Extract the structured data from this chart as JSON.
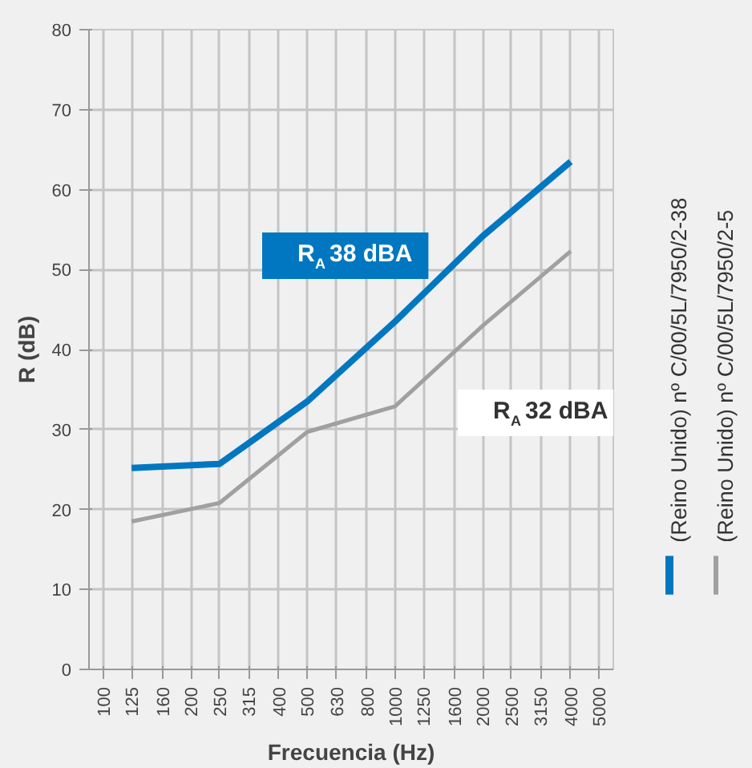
{
  "chart_data": {
    "type": "line",
    "xlabel": "Frecuencia (Hz)",
    "ylabel": "R (dB)",
    "x": [
      125,
      250,
      500,
      1000,
      2000,
      4000
    ],
    "series": [
      {
        "name": "(Reino Unido) nº C/00/5L/7950/2-38",
        "color": "#0077c0",
        "values": [
          25.2,
          25.7,
          33.5,
          43.5,
          54.2,
          63.5
        ]
      },
      {
        "name": "(Reino Unido) nº C/00/5L/7950/2-5",
        "color": "#a0a0a0",
        "values": [
          18.5,
          20.8,
          29.7,
          32.9,
          43.0,
          52.3
        ]
      }
    ],
    "annotations": [
      "R$_{A}$ 38 dBA",
      "R$_{A}$ 32 dBA"
    ],
    "log": "x",
    "xlim": [
      100,
      5000
    ],
    "xticks": [
      100,
      125,
      160,
      200,
      250,
      315,
      400,
      500,
      630,
      800,
      1000,
      1250,
      1600,
      2000,
      2500,
      3150,
      4000,
      5000
    ],
    "ylim": [
      0,
      80
    ],
    "yticks": [
      0,
      10,
      20,
      30,
      40,
      50,
      60,
      70,
      80
    ],
    "grid": true,
    "legend": "right"
  }
}
